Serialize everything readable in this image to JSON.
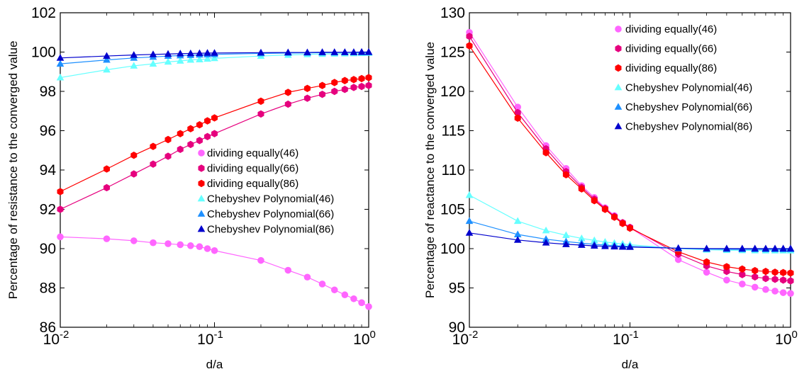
{
  "chart_data": [
    {
      "type": "line",
      "xscale": "log",
      "xlim": [
        0.01,
        1
      ],
      "ylim": [
        86,
        102
      ],
      "xlabel": "d/a",
      "ylabel": "Percentage of resistance to the converged value",
      "x_tick_labels": [
        {
          "base": "10",
          "exp": "-2"
        },
        {
          "base": "10",
          "exp": "-1"
        },
        {
          "base": "10",
          "exp": "0"
        }
      ],
      "y_tick_labels": [
        "86",
        "88",
        "90",
        "92",
        "94",
        "96",
        "98",
        "100",
        "102"
      ],
      "grid": false,
      "legend_position": "center-right",
      "x": [
        0.01,
        0.02,
        0.03,
        0.04,
        0.05,
        0.06,
        0.07,
        0.08,
        0.09,
        0.1,
        0.2,
        0.3,
        0.4,
        0.5,
        0.6,
        0.7,
        0.8,
        0.9,
        1.0
      ],
      "series": [
        {
          "name": "dividing equally(46)",
          "color": "#ff66ff",
          "marker": "circle",
          "values": [
            90.6,
            90.5,
            90.4,
            90.3,
            90.25,
            90.2,
            90.15,
            90.1,
            90.0,
            89.9,
            89.4,
            88.9,
            88.55,
            88.2,
            87.9,
            87.65,
            87.45,
            87.25,
            87.05
          ]
        },
        {
          "name": "dividing equally(66)",
          "color": "#e6007e",
          "marker": "hexagon",
          "values": [
            92.0,
            93.1,
            93.8,
            94.3,
            94.7,
            95.05,
            95.3,
            95.5,
            95.7,
            95.85,
            96.85,
            97.35,
            97.65,
            97.85,
            98.0,
            98.1,
            98.2,
            98.25,
            98.3
          ]
        },
        {
          "name": "dividing equally(86)",
          "color": "#ff0000",
          "marker": "hexagon",
          "values": [
            92.9,
            94.05,
            94.75,
            95.2,
            95.55,
            95.85,
            96.1,
            96.3,
            96.5,
            96.65,
            97.5,
            97.95,
            98.15,
            98.3,
            98.45,
            98.55,
            98.6,
            98.65,
            98.7
          ]
        },
        {
          "name": "Chebyshev Polynomial(46)",
          "color": "#66ffff",
          "marker": "triangle",
          "values": [
            98.7,
            99.1,
            99.3,
            99.4,
            99.5,
            99.55,
            99.6,
            99.62,
            99.65,
            99.68,
            99.8,
            99.85,
            99.88,
            99.9,
            99.91,
            99.92,
            99.93,
            99.94,
            99.95
          ]
        },
        {
          "name": "Chebyshev Polynomial(66)",
          "color": "#1e90ff",
          "marker": "triangle",
          "values": [
            99.4,
            99.6,
            99.7,
            99.75,
            99.8,
            99.82,
            99.84,
            99.86,
            99.87,
            99.88,
            99.93,
            99.95,
            99.96,
            99.97,
            99.97,
            99.98,
            99.98,
            99.98,
            99.98
          ]
        },
        {
          "name": "Chebyshev Polynomial(86)",
          "color": "#0000cd",
          "marker": "triangle",
          "values": [
            99.7,
            99.8,
            99.85,
            99.88,
            99.9,
            99.92,
            99.93,
            99.94,
            99.95,
            99.95,
            99.97,
            99.98,
            99.98,
            99.99,
            99.99,
            99.99,
            99.99,
            100.0,
            100.0
          ]
        }
      ]
    },
    {
      "type": "line",
      "xscale": "log",
      "xlim": [
        0.01,
        1
      ],
      "ylim": [
        90,
        130
      ],
      "xlabel": "d/a",
      "ylabel": "Percentage of reactance to the converged value",
      "x_tick_labels": [
        {
          "base": "10",
          "exp": "-2"
        },
        {
          "base": "10",
          "exp": "-1"
        },
        {
          "base": "10",
          "exp": "0"
        }
      ],
      "y_tick_labels": [
        "90",
        "95",
        "100",
        "105",
        "110",
        "115",
        "120",
        "125",
        "130"
      ],
      "grid": false,
      "legend_position": "top-right",
      "x": [
        0.01,
        0.02,
        0.03,
        0.04,
        0.05,
        0.06,
        0.07,
        0.08,
        0.09,
        0.1,
        0.2,
        0.3,
        0.4,
        0.5,
        0.6,
        0.7,
        0.8,
        0.9,
        1.0
      ],
      "series": [
        {
          "name": "dividing equally(46)",
          "color": "#ff66ff",
          "marker": "circle",
          "values": [
            127.5,
            118.0,
            113.1,
            110.2,
            108.0,
            106.5,
            105.2,
            104.2,
            103.3,
            102.7,
            98.6,
            97.0,
            96.0,
            95.5,
            95.1,
            94.8,
            94.6,
            94.4,
            94.3
          ]
        },
        {
          "name": "dividing equally(66)",
          "color": "#e6007e",
          "marker": "hexagon",
          "values": [
            127.0,
            117.3,
            112.7,
            109.8,
            107.8,
            106.3,
            105.1,
            104.1,
            103.3,
            102.7,
            99.3,
            97.8,
            97.1,
            96.7,
            96.4,
            96.2,
            96.1,
            96.0,
            95.9
          ]
        },
        {
          "name": "dividing equally(86)",
          "color": "#ff0000",
          "marker": "hexagon",
          "values": [
            125.8,
            116.6,
            112.2,
            109.4,
            107.6,
            106.1,
            105.0,
            104.0,
            103.2,
            102.6,
            99.6,
            98.3,
            97.7,
            97.4,
            97.2,
            97.1,
            97.0,
            96.95,
            96.9
          ]
        },
        {
          "name": "Chebyshev Polynomial(46)",
          "color": "#66ffff",
          "marker": "triangle",
          "values": [
            106.8,
            103.5,
            102.3,
            101.7,
            101.3,
            101.05,
            100.85,
            100.7,
            100.6,
            100.5,
            100.0,
            99.85,
            99.8,
            99.78,
            99.76,
            99.75,
            99.75,
            99.75,
            99.75
          ]
        },
        {
          "name": "Chebyshev Polynomial(66)",
          "color": "#1e90ff",
          "marker": "triangle",
          "values": [
            103.5,
            101.8,
            101.2,
            100.9,
            100.7,
            100.55,
            100.45,
            100.38,
            100.32,
            100.28,
            100.05,
            99.95,
            99.92,
            99.9,
            99.9,
            99.9,
            99.9,
            99.9,
            99.9
          ]
        },
        {
          "name": "Chebyshev Polynomial(86)",
          "color": "#0000cd",
          "marker": "triangle",
          "values": [
            102.0,
            101.1,
            100.75,
            100.55,
            100.45,
            100.35,
            100.3,
            100.25,
            100.22,
            100.2,
            100.05,
            100.0,
            100.0,
            100.0,
            100.0,
            100.0,
            100.0,
            100.0,
            100.0
          ]
        }
      ]
    }
  ]
}
